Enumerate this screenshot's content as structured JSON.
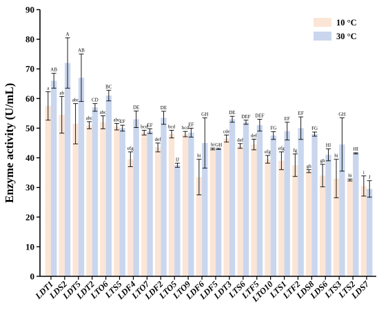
{
  "chart_data": {
    "type": "bar",
    "ylabel": "Enzyme activity (U/mL)",
    "ylim": [
      0,
      90
    ],
    "yticks": [
      0,
      10,
      20,
      30,
      40,
      50,
      60,
      70,
      80,
      90
    ],
    "categories": [
      "LDT1",
      "LDS2",
      "LDT5",
      "LDT2",
      "LTO6",
      "LTS5",
      "LDF4",
      "LTO7",
      "LDF2",
      "LTO5",
      "LTO9",
      "LDF6",
      "LDF5",
      "LDT3",
      "LTS6",
      "LTF5",
      "LTO10",
      "LTS1",
      "LTF2",
      "LDS8",
      "LDS6",
      "LTS3",
      "LTS2",
      "LDS7"
    ],
    "series": [
      {
        "name": "10 °C",
        "color": "#fbe5d6",
        "values": [
          57.5,
          54.5,
          51.5,
          51.0,
          52.0,
          50.5,
          39.5,
          48.5,
          43.5,
          48.0,
          48.0,
          33.5,
          43.0,
          46.5,
          44.0,
          44.5,
          39.5,
          39.0,
          37.5,
          35.5,
          34.0,
          33.0,
          32.5,
          30.5
        ],
        "errors": [
          4.8,
          6.2,
          6.8,
          1.2,
          2.2,
          1.1,
          2.5,
          0.8,
          1.5,
          1.3,
          0.9,
          6.0,
          0.3,
          1.2,
          0.8,
          1.8,
          1.3,
          3.0,
          3.8,
          0.5,
          3.8,
          6.5,
          0.3,
          3.4
        ],
        "labels": [
          "a",
          "ab",
          "abc",
          "abc",
          "abc",
          "abc",
          "efg",
          "bcd",
          "def",
          "bcd",
          "bcd",
          "hi",
          "hi",
          "cde",
          "def",
          "def",
          "efg",
          "efg",
          "fg",
          "gh",
          "gh",
          "hi",
          "hi",
          "i"
        ]
      },
      {
        "name": "30 °C",
        "color": "#c9d6ee",
        "values": [
          66.0,
          72.0,
          67.0,
          57.0,
          61.0,
          50.0,
          53.0,
          49.0,
          53.5,
          37.5,
          48.5,
          45.0,
          43.0,
          53.0,
          52.0,
          51.0,
          47.5,
          49.0,
          50.0,
          48.0,
          41.0,
          44.5,
          41.5,
          29.5
        ],
        "errors": [
          2.5,
          8.5,
          8.0,
          1.3,
          1.8,
          1.0,
          2.8,
          0.8,
          2.2,
          0.7,
          1.5,
          8.5,
          0.2,
          1.0,
          0.7,
          2.0,
          1.3,
          3.0,
          3.8,
          0.7,
          2.0,
          9.0,
          0.2,
          2.8
        ],
        "labels": [
          "AB",
          "A",
          "AB",
          "CD",
          "BC",
          "EF",
          "DE",
          "EF",
          "DE",
          "IJ",
          "EF",
          "GH",
          "GH",
          "DE",
          "DEF",
          "DEF",
          "FG",
          "EF",
          "EF",
          "FG",
          "HI",
          "GH",
          "HI",
          "J"
        ]
      }
    ],
    "legend": {
      "position": "top-right"
    }
  }
}
